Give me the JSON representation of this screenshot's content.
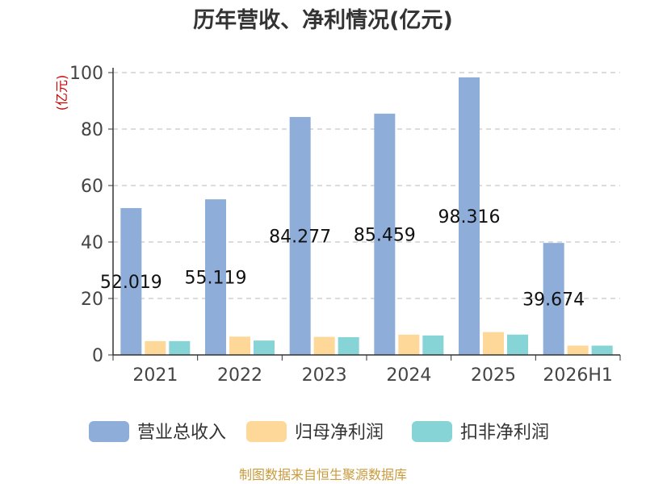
{
  "chart_data": {
    "type": "bar",
    "title": "历年营收、净利情况(亿元)",
    "ylabel": "(亿元)",
    "xlabel": "",
    "ylim": [
      0,
      100
    ],
    "yticks": [
      0,
      20,
      40,
      60,
      80,
      100
    ],
    "grid": true,
    "legend_position": "bottom",
    "categories": [
      "2021",
      "2022",
      "2023",
      "2024",
      "2025",
      "2026H1"
    ],
    "series": [
      {
        "name": "营业总收入",
        "color": "#8eadd9",
        "values": [
          52.019,
          55.119,
          84.277,
          85.459,
          98.316,
          39.674
        ],
        "show_labels": true
      },
      {
        "name": "归母净利润",
        "color": "#fdd898",
        "values": [
          4.9,
          6.5,
          6.4,
          7.2,
          8.1,
          3.3
        ],
        "show_labels": false
      },
      {
        "name": "扣非净利润",
        "color": "#86d4d6",
        "values": [
          4.9,
          5.1,
          6.3,
          6.9,
          7.2,
          3.3
        ],
        "show_labels": false
      }
    ],
    "data_labels": [
      "52.019",
      "55.119",
      "84.277",
      "85.459",
      "98.316",
      "39.674"
    ]
  },
  "source": "制图数据来自恒生聚源数据库"
}
